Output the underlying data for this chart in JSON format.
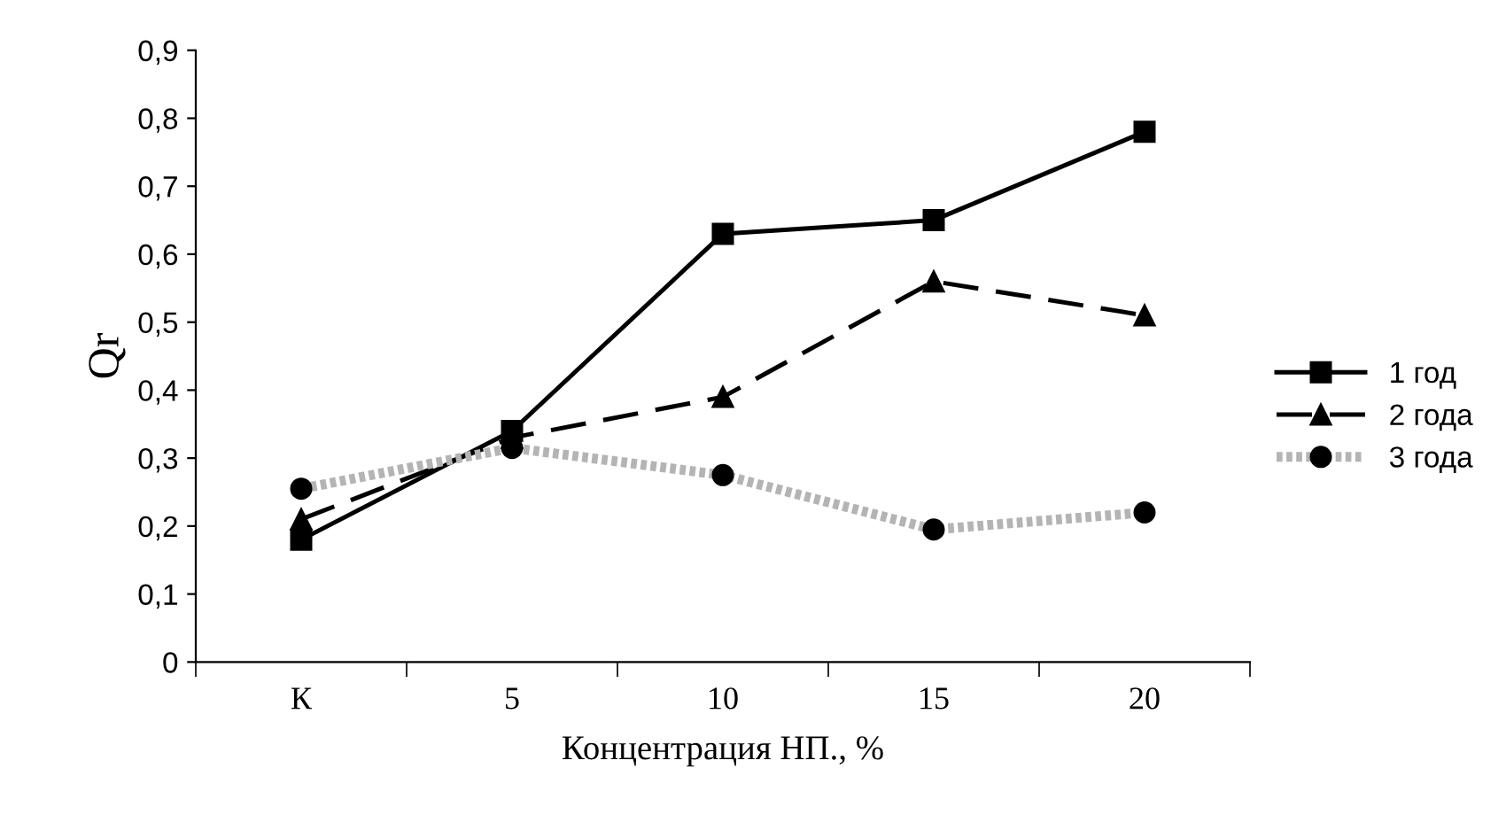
{
  "chart_data": {
    "type": "line",
    "xlabel": "Концентрация НП., %",
    "ylabel": "Qr",
    "categories": [
      "К",
      "5",
      "10",
      "15",
      "20"
    ],
    "series": [
      {
        "name": "1 год",
        "color": "#000000",
        "marker": "square",
        "line_style": "solid",
        "values": [
          0.18,
          0.34,
          0.63,
          0.65,
          0.78
        ]
      },
      {
        "name": "2 года",
        "color": "#000000",
        "marker": "triangle",
        "line_style": "dashed",
        "values": [
          0.21,
          0.33,
          0.39,
          0.56,
          0.51
        ]
      },
      {
        "name": "3 года",
        "color": "#b4b4b4",
        "marker": "circle",
        "line_style": "dotted",
        "values": [
          0.255,
          0.315,
          0.275,
          0.195,
          0.22
        ]
      }
    ],
    "ylim": [
      0,
      0.9
    ],
    "yticks": [
      {
        "value": 0,
        "label": "0"
      },
      {
        "value": 0.1,
        "label": "0,1"
      },
      {
        "value": 0.2,
        "label": "0,2"
      },
      {
        "value": 0.3,
        "label": "0,3"
      },
      {
        "value": 0.4,
        "label": "0,4"
      },
      {
        "value": 0.5,
        "label": "0,5"
      },
      {
        "value": 0.6,
        "label": "0,6"
      },
      {
        "value": 0.7,
        "label": "0,7"
      },
      {
        "value": 0.8,
        "label": "0,8"
      },
      {
        "value": 0.9,
        "label": "0,9"
      }
    ],
    "grid": false,
    "legend": "right"
  }
}
